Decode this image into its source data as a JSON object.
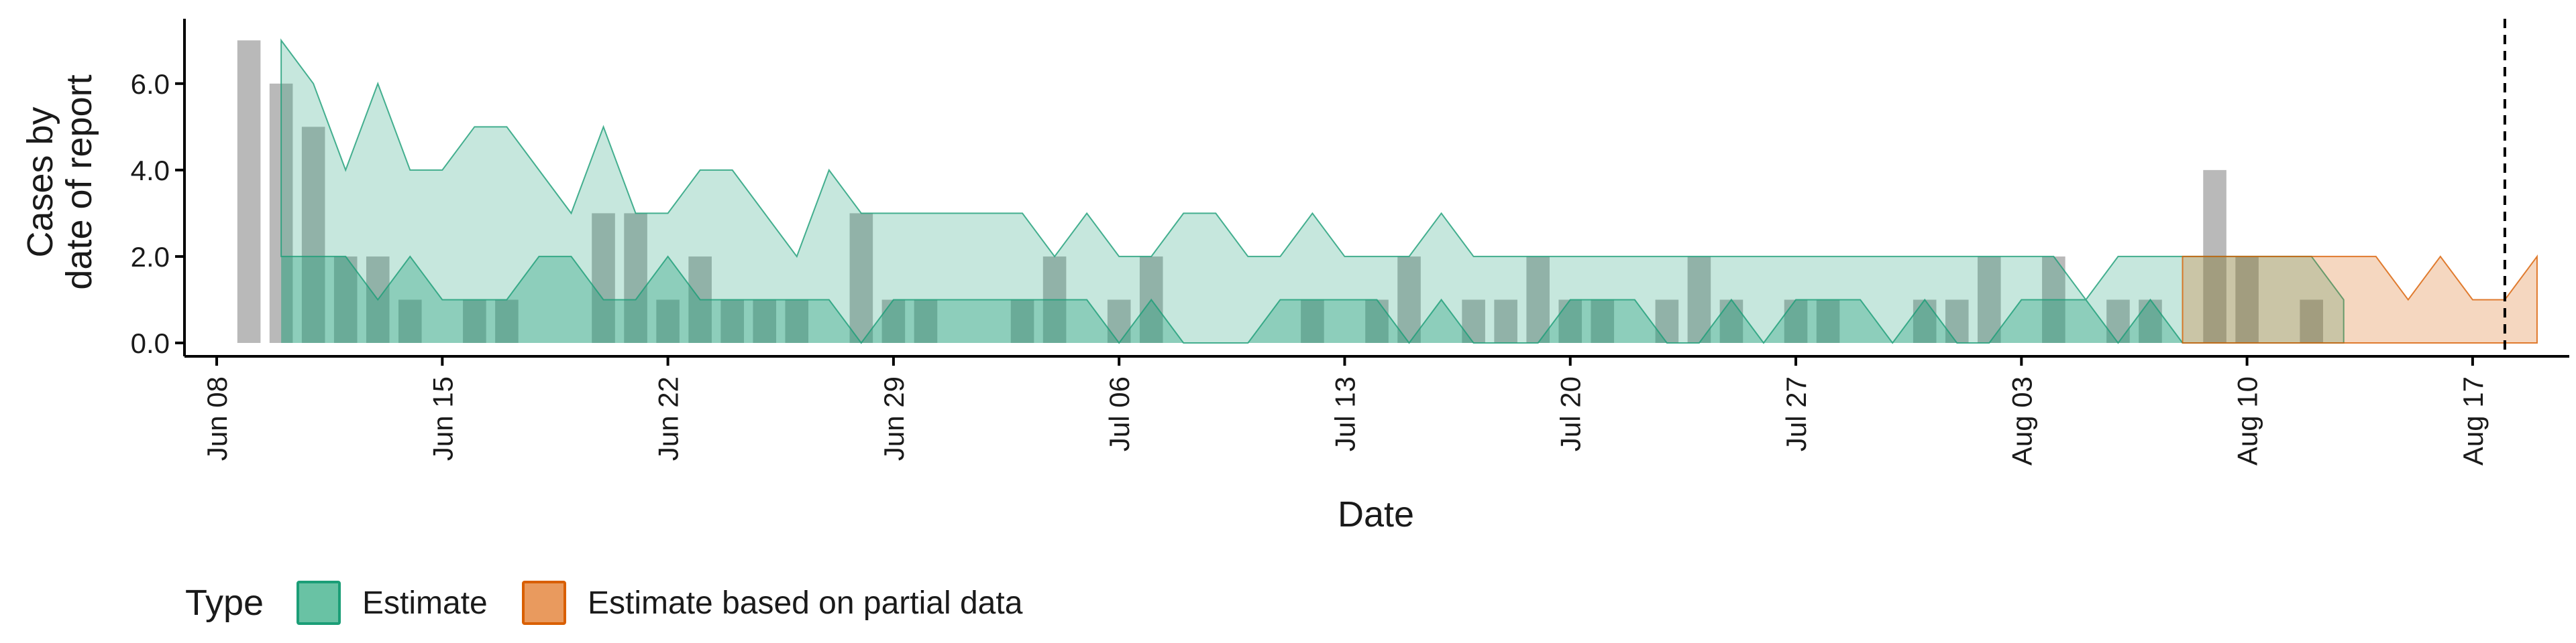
{
  "chart_data": {
    "type": "area",
    "xlabel": "Date",
    "ylabel_lines": [
      "Cases by",
      "date of report"
    ],
    "ylim": [
      0,
      7.5
    ],
    "yticks": [
      {
        "value": 0,
        "label": "0.0"
      },
      {
        "value": 2,
        "label": "2.0"
      },
      {
        "value": 4,
        "label": "4.0"
      },
      {
        "value": 6,
        "label": "6.0"
      }
    ],
    "xlim": [
      "2020-06-07",
      "2020-08-20"
    ],
    "xticks": [
      {
        "date": "2020-06-08",
        "label": "Jun 08"
      },
      {
        "date": "2020-06-15",
        "label": "Jun 15"
      },
      {
        "date": "2020-06-22",
        "label": "Jun 22"
      },
      {
        "date": "2020-06-29",
        "label": "Jun 29"
      },
      {
        "date": "2020-07-06",
        "label": "Jul 06"
      },
      {
        "date": "2020-07-13",
        "label": "Jul 13"
      },
      {
        "date": "2020-07-20",
        "label": "Jul 20"
      },
      {
        "date": "2020-07-27",
        "label": "Jul 27"
      },
      {
        "date": "2020-08-03",
        "label": "Aug 03"
      },
      {
        "date": "2020-08-10",
        "label": "Aug 10"
      },
      {
        "date": "2020-08-17",
        "label": "Aug 17"
      }
    ],
    "cutoff_date": "2020-08-18",
    "colors": {
      "estimate": "#1b9e77",
      "partial": "#d95f02",
      "bars": "#808080"
    },
    "reported_cases": {
      "start": "2020-06-09",
      "values": [
        7,
        6,
        5,
        2,
        2,
        1,
        0,
        1,
        1,
        0,
        0,
        3,
        3,
        1,
        2,
        1,
        1,
        1,
        0,
        3,
        1,
        1,
        0,
        0,
        1,
        2,
        0,
        1,
        2,
        0,
        0,
        0,
        0,
        1,
        0,
        1,
        2,
        0,
        1,
        1,
        2,
        1,
        1,
        0,
        1,
        2,
        1,
        0,
        1,
        1,
        0,
        0,
        1,
        1,
        2,
        0,
        2,
        0,
        1,
        1,
        0,
        4,
        2,
        0,
        1
      ]
    },
    "series": [
      {
        "name": "Estimate",
        "start": "2020-06-10",
        "upper": [
          7,
          6,
          4,
          6,
          4,
          4,
          5,
          5,
          4,
          3,
          5,
          3,
          3,
          4,
          4,
          3,
          2,
          4,
          3,
          3,
          3,
          3,
          3,
          3,
          2,
          3,
          2,
          2,
          3,
          3,
          2,
          2,
          3,
          2,
          2,
          2,
          3,
          2,
          2,
          2,
          2,
          2,
          2,
          2,
          2,
          2,
          2,
          2,
          2,
          2,
          2,
          2,
          2,
          2,
          2,
          2,
          1,
          2,
          2,
          2,
          2,
          2,
          2,
          2,
          1
        ],
        "lower": [
          2,
          2,
          2,
          1,
          2,
          1,
          1,
          1,
          2,
          2,
          1,
          1,
          2,
          1,
          1,
          1,
          1,
          1,
          0,
          1,
          1,
          1,
          1,
          1,
          1,
          1,
          0,
          1,
          0,
          0,
          0,
          1,
          1,
          1,
          1,
          0,
          1,
          0,
          0,
          0,
          1,
          1,
          1,
          0,
          0,
          1,
          0,
          1,
          1,
          1,
          0,
          1,
          0,
          0,
          1,
          1,
          1,
          0,
          1,
          0,
          0,
          0,
          0,
          0,
          0
        ]
      },
      {
        "name": "Estimate based on partial data",
        "start": "2020-08-08",
        "upper": [
          2,
          2,
          2,
          2,
          2,
          2,
          2,
          1,
          2,
          1,
          1,
          2
        ],
        "lower": [
          0,
          0,
          0,
          0,
          0,
          0,
          0,
          0,
          0,
          0,
          0,
          0
        ]
      }
    ]
  },
  "legend": {
    "title": "Type",
    "items": [
      {
        "label": "Estimate",
        "fill": "#69c2a4",
        "stroke": "#1b9e77"
      },
      {
        "label": "Estimate based on partial data",
        "fill": "#e99a5e",
        "stroke": "#d95f02"
      }
    ]
  }
}
